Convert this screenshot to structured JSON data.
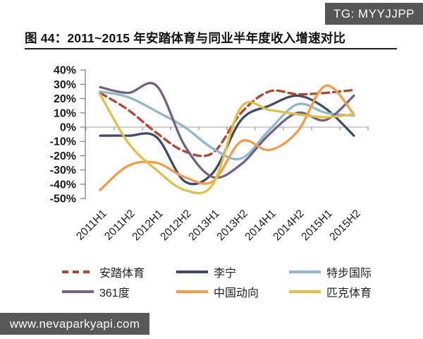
{
  "badge": {
    "text": "TG: MYYJJPP"
  },
  "figure": {
    "title": "图 44：2011~2015 年安踏体育与同业半年度收入增速对比"
  },
  "watermark": {
    "text": "www.nevaparkyapi.com"
  },
  "chart_data": {
    "type": "line",
    "title": "2011~2015 年安踏体育与同业半年度收入增速对比",
    "categories": [
      "2011H1",
      "2011H2",
      "2012H1",
      "2012H2",
      "2013H1",
      "2013H2",
      "2014H1",
      "2014H2",
      "2015H1",
      "2015H2"
    ],
    "series": [
      {
        "name": "安踏体育",
        "color": "#b04531",
        "dash": true,
        "values": [
          24,
          12,
          -4,
          -17,
          -18,
          10,
          25,
          23,
          24,
          26
        ]
      },
      {
        "name": "李宁",
        "color": "#3e4a66",
        "dash": false,
        "values": [
          -6,
          -6,
          -7,
          -38,
          -32,
          5,
          15,
          22,
          13,
          -6
        ]
      },
      {
        "name": "特步国际",
        "color": "#8fb8cf",
        "dash": false,
        "values": [
          25,
          21,
          11,
          0,
          -15,
          -22,
          -2,
          16,
          10,
          8
        ]
      },
      {
        "name": "361度",
        "color": "#77607f",
        "dash": false,
        "values": [
          28,
          24,
          29,
          -13,
          -35,
          -26,
          -5,
          10,
          5,
          22
        ]
      },
      {
        "name": "中国动向",
        "color": "#f09c4e",
        "dash": false,
        "values": [
          -44,
          -27,
          -25,
          -35,
          -38,
          -10,
          -16,
          -3,
          29,
          9
        ]
      },
      {
        "name": "匹克体育",
        "color": "#dfc04f",
        "dash": false,
        "values": [
          23,
          -11,
          -30,
          -44,
          -40,
          14,
          12,
          9,
          7,
          9
        ]
      }
    ],
    "ylim": [
      -50,
      40
    ],
    "ytick_step": 10,
    "ytick_labels": [
      "40%",
      "30%",
      "20%",
      "10%",
      "0%",
      "-10%",
      "-20%",
      "-30%",
      "-40%",
      "-50%"
    ],
    "yaxis_unit": "percent",
    "grid": "zero-line-only",
    "legend_position": "bottom",
    "line_style": "smoothed"
  }
}
